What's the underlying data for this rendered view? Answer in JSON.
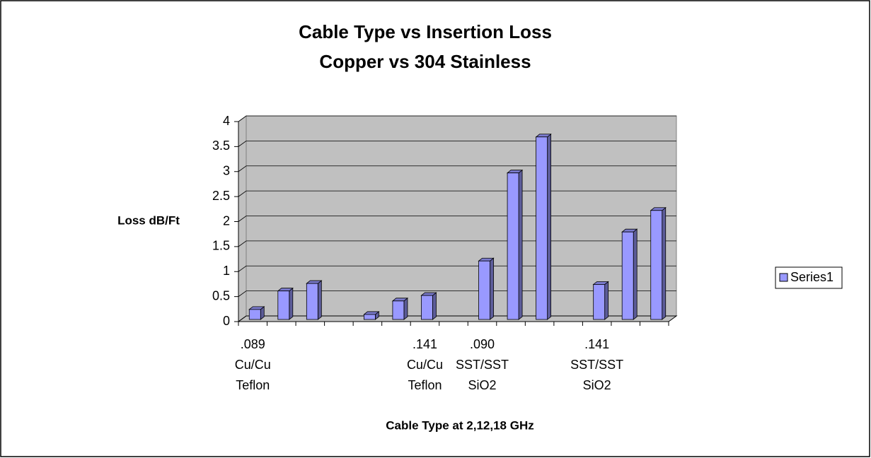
{
  "chart_data": {
    "type": "bar",
    "title": "Cable Type vs Insertion Loss",
    "subtitle": "Copper vs 304 Stainless",
    "y_label": "Loss dB/Ft",
    "x_label": "Cable Type at 2,12,18 GHz",
    "categories": [
      ".089\nCu/Cu\nTeflon",
      null,
      null,
      null,
      null,
      null,
      ".141\nCu/Cu\nTeflon",
      null,
      ".090\nSST/SST\nSiO2",
      null,
      null,
      null,
      ".141\nSST/SST\nSiO2",
      null,
      null
    ],
    "series": [
      {
        "name": "Series1",
        "color": "#9999ff",
        "values": [
          0.2,
          0.57,
          0.72,
          null,
          0.1,
          0.37,
          0.48,
          null,
          1.17,
          2.93,
          3.65,
          null,
          0.7,
          1.75,
          2.18
        ]
      }
    ],
    "ylim": [
      0,
      4
    ],
    "yticks": [
      0,
      0.5,
      1,
      1.5,
      2,
      2.5,
      3,
      3.5,
      4
    ],
    "grid": true,
    "legend": "right"
  }
}
